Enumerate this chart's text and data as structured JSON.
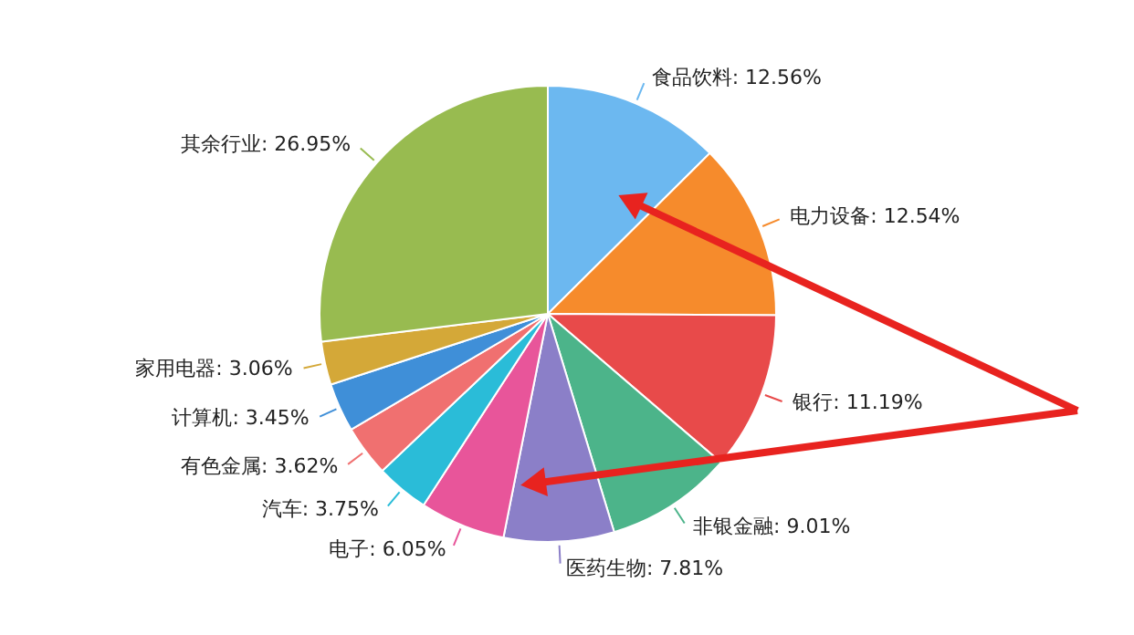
{
  "chart_data": {
    "type": "pie",
    "categories": [
      "食品饮料",
      "电力设备",
      "银行",
      "非银金融",
      "医药生物",
      "电子",
      "汽车",
      "有色金属",
      "计算机",
      "家用电器",
      "其余行业"
    ],
    "values": [
      12.56,
      12.54,
      11.19,
      9.01,
      7.81,
      6.05,
      3.75,
      3.62,
      3.45,
      3.06,
      26.95
    ],
    "value_labels": [
      "12.56%",
      "12.54%",
      "11.19%",
      "9.01%",
      "7.81%",
      "6.05%",
      "3.75%",
      "3.62%",
      "3.45%",
      "3.06%",
      "26.95%"
    ],
    "colors": [
      "#6cb8f0",
      "#f68b2c",
      "#e84a4a",
      "#4cb48a",
      "#8b7fc8",
      "#e8559a",
      "#2abcd8",
      "#f07070",
      "#3f8fd8",
      "#d4a838",
      "#98bb50"
    ]
  }
}
